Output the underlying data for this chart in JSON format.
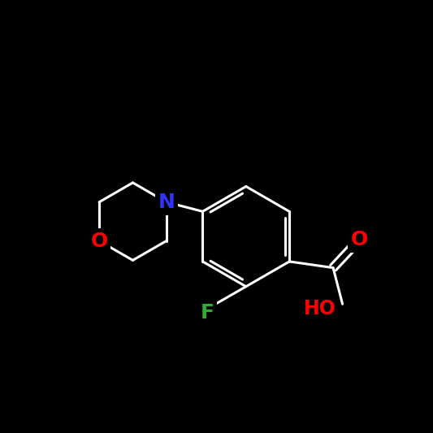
{
  "background_color": "#000000",
  "bond_color": "#ffffff",
  "bond_width": 2.2,
  "atom_colors": {
    "O": "#ff0000",
    "N": "#3333ff",
    "F": "#33aa33",
    "C": "#ffffff",
    "H": "#ffffff"
  },
  "figsize": [
    5.33,
    5.33
  ],
  "dpi": 100,
  "font_size": 16
}
